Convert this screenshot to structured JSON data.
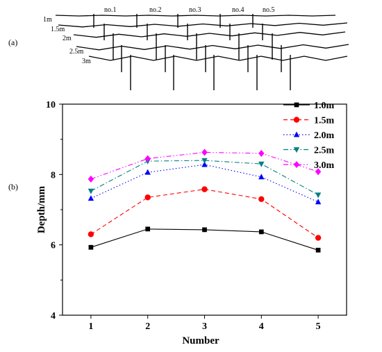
{
  "panel_a": {
    "label": "(a)",
    "row_labels": [
      "1m",
      "1.5m",
      "2m",
      "2.5m",
      "3m"
    ],
    "column_labels": [
      "no.1",
      "no.2",
      "no.3",
      "no.4",
      "no.5"
    ]
  },
  "panel_b": {
    "label": "(b)"
  },
  "chart_data": {
    "type": "line",
    "title": "",
    "xlabel": "Number",
    "ylabel": "Depth/mm",
    "x": [
      1,
      2,
      3,
      4,
      5
    ],
    "xlim": [
      0.5,
      5.5
    ],
    "ylim": [
      4,
      10
    ],
    "xticks": [
      1,
      2,
      3,
      4,
      5
    ],
    "yticks": [
      4,
      6,
      8,
      10
    ],
    "grid": false,
    "legend_position": "top-right",
    "series": [
      {
        "name": "1.0m",
        "values": [
          5.93,
          6.45,
          6.43,
          6.37,
          5.85
        ],
        "color": "#000000",
        "marker": "square",
        "dash": "solid"
      },
      {
        "name": "1.5m",
        "values": [
          6.3,
          7.35,
          7.58,
          7.3,
          6.2
        ],
        "color": "#ff0000",
        "marker": "circle",
        "dash": "dash"
      },
      {
        "name": "2.0m",
        "values": [
          7.32,
          8.06,
          8.28,
          7.93,
          7.22
        ],
        "color": "#0000ff",
        "marker": "triangle-up",
        "dash": "dot"
      },
      {
        "name": "2.5m",
        "values": [
          7.53,
          8.38,
          8.4,
          8.3,
          7.42
        ],
        "color": "#008080",
        "marker": "triangle-down",
        "dash": "dashdot"
      },
      {
        "name": "3.0m",
        "values": [
          7.87,
          8.45,
          8.63,
          8.6,
          8.08
        ],
        "color": "#ff00ff",
        "marker": "diamond",
        "dash": "dashdotdot"
      }
    ]
  }
}
